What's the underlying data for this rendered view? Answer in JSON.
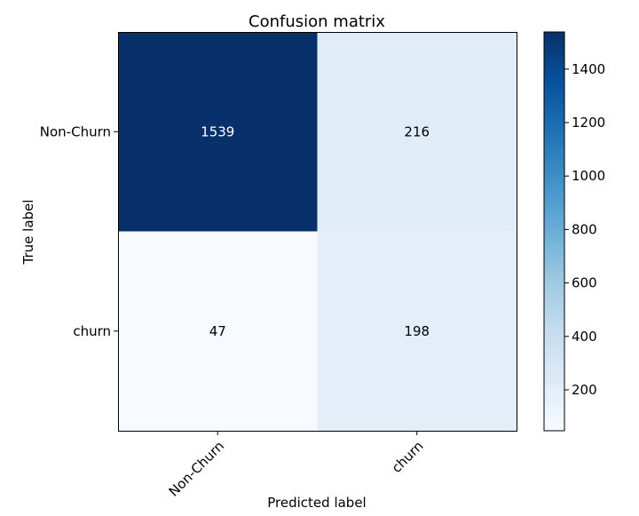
{
  "chart_data": {
    "type": "heatmap",
    "title": "Confusion matrix",
    "xlabel": "Predicted label",
    "ylabel": "True label",
    "x_categories": [
      "Non-Churn",
      "churn"
    ],
    "y_categories": [
      "Non-Churn",
      "churn"
    ],
    "values": [
      [
        1539,
        216
      ],
      [
        47,
        198
      ]
    ],
    "colormap": "Blues",
    "vmin": 47,
    "vmax": 1539,
    "colorbar_ticks": [
      200,
      400,
      600,
      800,
      1000,
      1200,
      1400
    ],
    "x_tick_rotation": 45,
    "text_colors": {
      "dark": "#ffffff",
      "light": "#000000"
    }
  }
}
